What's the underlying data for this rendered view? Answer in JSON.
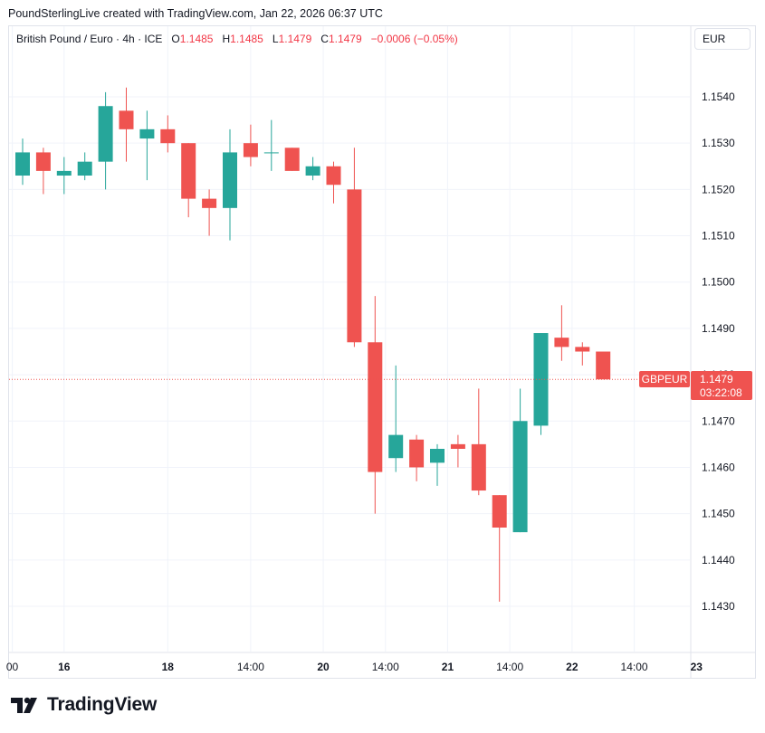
{
  "header": {
    "attribution": "PoundSterlingLive created with TradingView.com, Jan 22, 2026 06:37 UTC"
  },
  "legend": {
    "symbol": "British Pound / Euro · 4h · ICE",
    "open_label": "O",
    "open": "1.1485",
    "high_label": "H",
    "high": "1.1485",
    "low_label": "L",
    "low": "1.1479",
    "close_label": "C",
    "close": "1.1479",
    "change": "−0.0006 (−0.05%)"
  },
  "currency": "EUR",
  "price_tag": {
    "symbol": "GBPEUR",
    "price": "1.1479",
    "countdown": "03:22:08"
  },
  "brand": {
    "name": "TradingView",
    "logo_icon": "tradingview-logo-icon"
  },
  "colors": {
    "up": "#26a69a",
    "down": "#ef5350",
    "grid": "#f0f3fa",
    "text": "#131722"
  },
  "chart_data": {
    "type": "candlestick",
    "symbol": "GBPEUR",
    "interval": "4h",
    "ylim": [
      1.1418,
      1.1553
    ],
    "grid": true,
    "y_ticks": [
      "1.1430",
      "1.1440",
      "1.1450",
      "1.1460",
      "1.1470",
      "1.1480",
      "1.1490",
      "1.1500",
      "1.1510",
      "1.1520",
      "1.1530",
      "1.1540"
    ],
    "x_ticks": [
      {
        "index": -0.5,
        "label": "00",
        "bold": false
      },
      {
        "index": 2,
        "label": "16",
        "bold": true
      },
      {
        "index": 7,
        "label": "18",
        "bold": true
      },
      {
        "index": 11,
        "label": "14:00",
        "bold": false
      },
      {
        "index": 14.5,
        "label": "20",
        "bold": true
      },
      {
        "index": 17.5,
        "label": "14:00",
        "bold": false
      },
      {
        "index": 20.5,
        "label": "21",
        "bold": true
      },
      {
        "index": 23.5,
        "label": "14:00",
        "bold": false
      },
      {
        "index": 26.5,
        "label": "22",
        "bold": true
      },
      {
        "index": 29.5,
        "label": "14:00",
        "bold": false
      },
      {
        "index": 32.5,
        "label": "23",
        "bold": true
      }
    ],
    "candles": [
      {
        "o": 1.1523,
        "h": 1.1531,
        "l": 1.1521,
        "c": 1.1528
      },
      {
        "o": 1.1528,
        "h": 1.1529,
        "l": 1.1519,
        "c": 1.1524
      },
      {
        "o": 1.1523,
        "h": 1.1527,
        "l": 1.1519,
        "c": 1.1524
      },
      {
        "o": 1.1523,
        "h": 1.1528,
        "l": 1.1522,
        "c": 1.1526
      },
      {
        "o": 1.1526,
        "h": 1.1541,
        "l": 1.152,
        "c": 1.1538
      },
      {
        "o": 1.1537,
        "h": 1.1542,
        "l": 1.1526,
        "c": 1.1533
      },
      {
        "o": 1.1531,
        "h": 1.1537,
        "l": 1.1522,
        "c": 1.1533
      },
      {
        "o": 1.1533,
        "h": 1.1536,
        "l": 1.1528,
        "c": 1.153
      },
      {
        "o": 1.153,
        "h": 1.153,
        "l": 1.1514,
        "c": 1.1518
      },
      {
        "o": 1.1518,
        "h": 1.152,
        "l": 1.151,
        "c": 1.1516
      },
      {
        "o": 1.1516,
        "h": 1.1533,
        "l": 1.1509,
        "c": 1.1528
      },
      {
        "o": 1.153,
        "h": 1.1534,
        "l": 1.1525,
        "c": 1.1527
      },
      {
        "o": 1.1528,
        "h": 1.1535,
        "l": 1.1524,
        "c": 1.1528
      },
      {
        "o": 1.1529,
        "h": 1.1529,
        "l": 1.1524,
        "c": 1.1524
      },
      {
        "o": 1.1523,
        "h": 1.1527,
        "l": 1.1522,
        "c": 1.1525
      },
      {
        "o": 1.1525,
        "h": 1.1526,
        "l": 1.1517,
        "c": 1.1521
      },
      {
        "o": 1.152,
        "h": 1.1529,
        "l": 1.1486,
        "c": 1.1487
      },
      {
        "o": 1.1487,
        "h": 1.1497,
        "l": 1.145,
        "c": 1.1459
      },
      {
        "o": 1.1462,
        "h": 1.1482,
        "l": 1.1459,
        "c": 1.1467
      },
      {
        "o": 1.1466,
        "h": 1.1467,
        "l": 1.1457,
        "c": 1.146
      },
      {
        "o": 1.1461,
        "h": 1.1465,
        "l": 1.1456,
        "c": 1.1464
      },
      {
        "o": 1.1465,
        "h": 1.1467,
        "l": 1.146,
        "c": 1.1464
      },
      {
        "o": 1.1465,
        "h": 1.1477,
        "l": 1.1454,
        "c": 1.1455
      },
      {
        "o": 1.1454,
        "h": 1.1454,
        "l": 1.1431,
        "c": 1.1447
      },
      {
        "o": 1.1446,
        "h": 1.1477,
        "l": 1.1446,
        "c": 1.147
      },
      {
        "o": 1.1469,
        "h": 1.1489,
        "l": 1.1467,
        "c": 1.1489
      },
      {
        "o": 1.1488,
        "h": 1.1495,
        "l": 1.1483,
        "c": 1.1486
      },
      {
        "o": 1.1486,
        "h": 1.1487,
        "l": 1.1482,
        "c": 1.1485
      },
      {
        "o": 1.1485,
        "h": 1.1485,
        "l": 1.1479,
        "c": 1.1479
      }
    ]
  }
}
